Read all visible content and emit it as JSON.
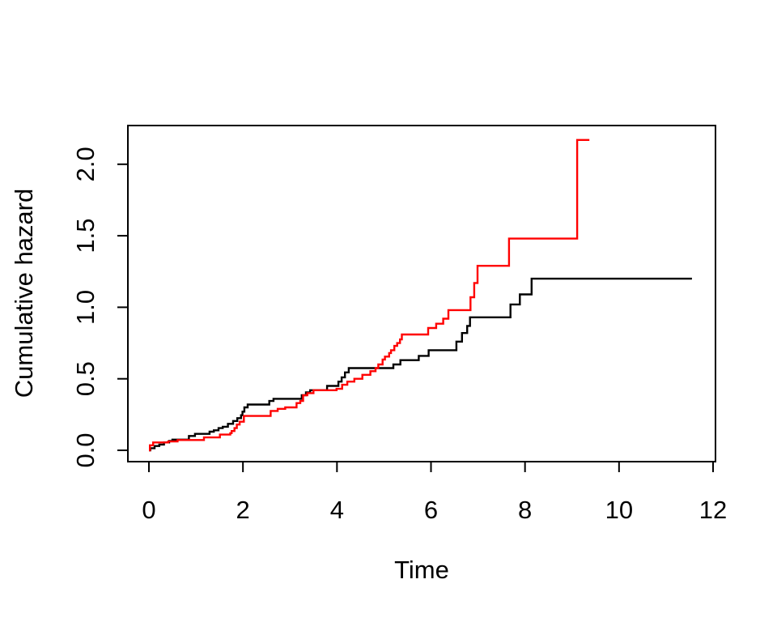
{
  "figure": {
    "background": "#ffffff",
    "axis_color": "#000000"
  },
  "chart_data": {
    "type": "line",
    "subtype": "step",
    "title": "",
    "xlabel": "Time",
    "ylabel": "Cumulative hazard",
    "xlim": [
      0,
      12
    ],
    "ylim": [
      0,
      2.2
    ],
    "x_ticks": [
      0,
      2,
      4,
      6,
      8,
      10,
      12
    ],
    "y_ticks": [
      0.0,
      0.5,
      1.0,
      1.5,
      2.0
    ],
    "x_tick_labels": [
      "0",
      "2",
      "4",
      "6",
      "8",
      "10",
      "12"
    ],
    "y_tick_labels": [
      "0.0",
      "0.5",
      "1.0",
      "1.5",
      "2.0"
    ],
    "grid": false,
    "legend": "none",
    "series": [
      {
        "name": "group-1-black",
        "color": "#000000",
        "end_time": 11.55,
        "points": [
          [
            0.0,
            0.0
          ],
          [
            0.03,
            0.015
          ],
          [
            0.12,
            0.03
          ],
          [
            0.22,
            0.04
          ],
          [
            0.32,
            0.055
          ],
          [
            0.43,
            0.065
          ],
          [
            0.5,
            0.075
          ],
          [
            0.85,
            0.1
          ],
          [
            0.98,
            0.115
          ],
          [
            1.29,
            0.13
          ],
          [
            1.38,
            0.14
          ],
          [
            1.48,
            0.155
          ],
          [
            1.57,
            0.165
          ],
          [
            1.68,
            0.185
          ],
          [
            1.79,
            0.205
          ],
          [
            1.88,
            0.225
          ],
          [
            1.96,
            0.245
          ],
          [
            1.99,
            0.27
          ],
          [
            2.03,
            0.3
          ],
          [
            2.1,
            0.32
          ],
          [
            2.56,
            0.345
          ],
          [
            2.65,
            0.36
          ],
          [
            3.25,
            0.385
          ],
          [
            3.34,
            0.405
          ],
          [
            3.43,
            0.42
          ],
          [
            3.79,
            0.45
          ],
          [
            4.03,
            0.48
          ],
          [
            4.1,
            0.51
          ],
          [
            4.17,
            0.545
          ],
          [
            4.25,
            0.575
          ],
          [
            5.2,
            0.6
          ],
          [
            5.35,
            0.63
          ],
          [
            5.74,
            0.66
          ],
          [
            5.95,
            0.7
          ],
          [
            6.54,
            0.76
          ],
          [
            6.66,
            0.82
          ],
          [
            6.77,
            0.87
          ],
          [
            6.83,
            0.93
          ],
          [
            7.69,
            1.02
          ],
          [
            7.89,
            1.09
          ],
          [
            8.14,
            1.2
          ]
        ]
      },
      {
        "name": "group-2-red",
        "color": "#ff0000",
        "end_time": 9.37,
        "points": [
          [
            0.0,
            0.0
          ],
          [
            0.02,
            0.035
          ],
          [
            0.09,
            0.055
          ],
          [
            0.41,
            0.062
          ],
          [
            0.61,
            0.072
          ],
          [
            1.17,
            0.09
          ],
          [
            1.51,
            0.11
          ],
          [
            1.73,
            0.12
          ],
          [
            1.76,
            0.135
          ],
          [
            1.82,
            0.155
          ],
          [
            1.87,
            0.18
          ],
          [
            1.93,
            0.2
          ],
          [
            2.02,
            0.24
          ],
          [
            2.59,
            0.275
          ],
          [
            2.74,
            0.29
          ],
          [
            2.9,
            0.3
          ],
          [
            3.14,
            0.33
          ],
          [
            3.22,
            0.345
          ],
          [
            3.28,
            0.385
          ],
          [
            3.37,
            0.4
          ],
          [
            3.5,
            0.42
          ],
          [
            3.99,
            0.43
          ],
          [
            4.11,
            0.458
          ],
          [
            4.22,
            0.48
          ],
          [
            4.37,
            0.5
          ],
          [
            4.54,
            0.528
          ],
          [
            4.71,
            0.553
          ],
          [
            4.82,
            0.575
          ],
          [
            4.88,
            0.6
          ],
          [
            4.97,
            0.635
          ],
          [
            5.02,
            0.655
          ],
          [
            5.11,
            0.68
          ],
          [
            5.15,
            0.7
          ],
          [
            5.22,
            0.73
          ],
          [
            5.28,
            0.75
          ],
          [
            5.34,
            0.775
          ],
          [
            5.38,
            0.81
          ],
          [
            5.94,
            0.855
          ],
          [
            6.11,
            0.885
          ],
          [
            6.26,
            0.92
          ],
          [
            6.37,
            0.98
          ],
          [
            6.84,
            1.07
          ],
          [
            6.92,
            1.17
          ],
          [
            6.99,
            1.29
          ],
          [
            7.66,
            1.48
          ],
          [
            9.11,
            2.17
          ]
        ]
      }
    ]
  }
}
